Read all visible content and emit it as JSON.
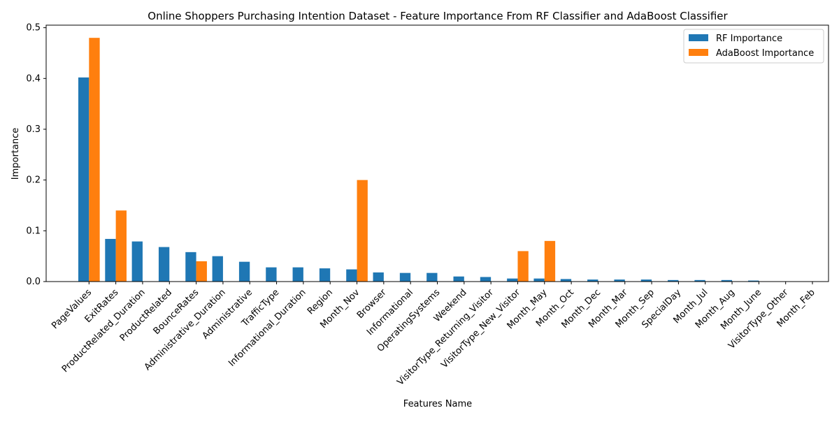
{
  "chart_data": {
    "type": "bar",
    "title": "Online Shoppers Purchasing Intention Dataset - Feature Importance From RF Classifier and AdaBoost Classifier",
    "xlabel": "Features Name",
    "ylabel": "Importance",
    "ylim": [
      0,
      0.505
    ],
    "yticks": [
      "0.0",
      "0.1",
      "0.2",
      "0.3",
      "0.4",
      "0.5"
    ],
    "grid": false,
    "legend_position": "top-right",
    "categories": [
      "PageValues",
      "ExitRates",
      "ProductRelated_Duration",
      "ProductRelated",
      "BounceRates",
      "Administrative_Duration",
      "Administrative",
      "TrafficType",
      "Informational_Duration",
      "Region",
      "Month_Nov",
      "Browser",
      "Informational",
      "OperatingSystems",
      "Weekend",
      "VisitorType_Returning_Visitor",
      "VisitorType_New_Visitor",
      "Month_May",
      "Month_Oct",
      "Month_Dec",
      "Month_Mar",
      "Month_Sep",
      "SpecialDay",
      "Month_Jul",
      "Month_Aug",
      "Month_June",
      "VisitorType_Other",
      "Month_Feb"
    ],
    "series": [
      {
        "name": "RF Importance",
        "color": "#1f77b4",
        "values": [
          0.402,
          0.084,
          0.079,
          0.068,
          0.058,
          0.05,
          0.039,
          0.028,
          0.028,
          0.026,
          0.024,
          0.018,
          0.017,
          0.017,
          0.01,
          0.009,
          0.006,
          0.006,
          0.005,
          0.004,
          0.004,
          0.004,
          0.003,
          0.003,
          0.003,
          0.002,
          0.0005,
          0.0005
        ]
      },
      {
        "name": "AdaBoost Importance",
        "color": "#ff7f0e",
        "values": [
          0.48,
          0.14,
          0,
          0,
          0.04,
          0,
          0,
          0,
          0,
          0,
          0.2,
          0,
          0,
          0,
          0,
          0,
          0.06,
          0.08,
          0,
          0,
          0,
          0,
          0,
          0,
          0,
          0,
          0,
          0
        ]
      }
    ]
  }
}
